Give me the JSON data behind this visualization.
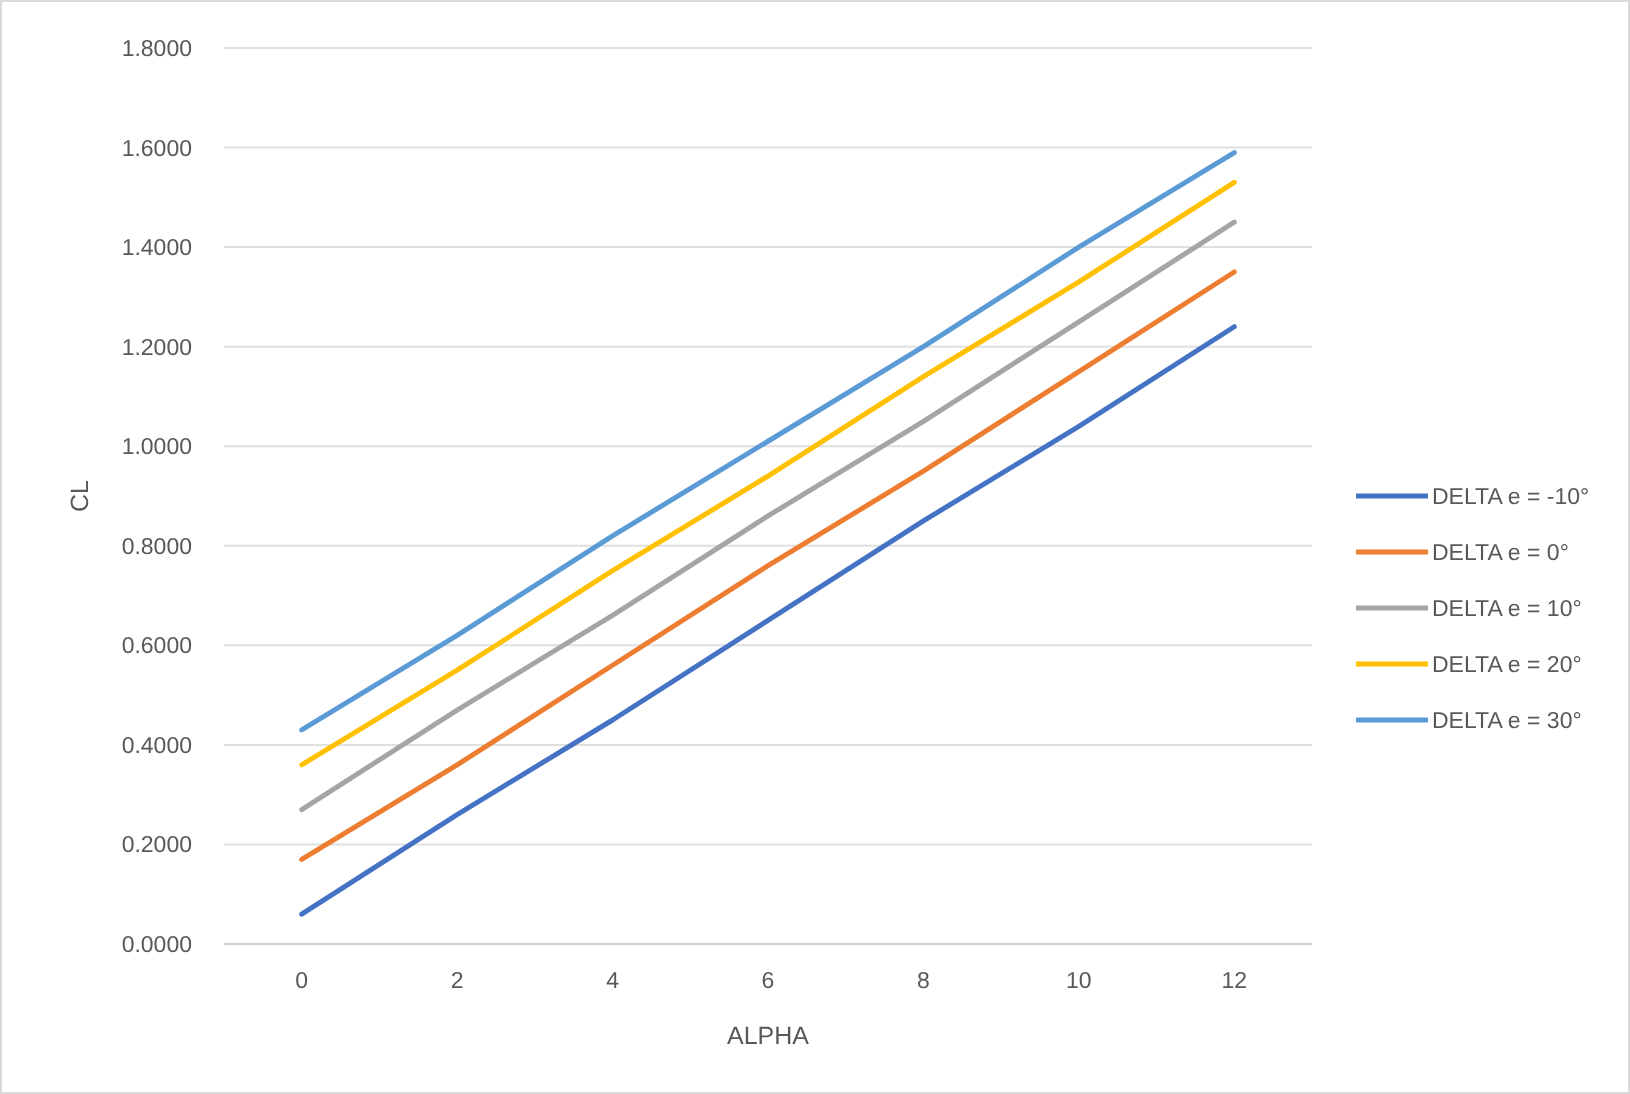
{
  "chart_data": {
    "type": "line",
    "xlabel": "ALPHA",
    "ylabel": "CL",
    "x": [
      0,
      2,
      4,
      6,
      8,
      10,
      12
    ],
    "xlim": [
      -1,
      13
    ],
    "xticks": [
      0,
      2,
      4,
      6,
      8,
      10,
      12
    ],
    "ylim": [
      0,
      1.8
    ],
    "yticks": [
      {
        "value": 0,
        "label": "0.0000"
      },
      {
        "value": 0.2,
        "label": "0.2000"
      },
      {
        "value": 0.4,
        "label": "0.4000"
      },
      {
        "value": 0.6,
        "label": "0.6000"
      },
      {
        "value": 0.8,
        "label": "0.8000"
      },
      {
        "value": 1.0,
        "label": "1.0000"
      },
      {
        "value": 1.2,
        "label": "1.2000"
      },
      {
        "value": 1.4,
        "label": "1.4000"
      },
      {
        "value": 1.6,
        "label": "1.6000"
      },
      {
        "value": 1.8,
        "label": "1.8000"
      }
    ],
    "grid": "y",
    "legend": "right",
    "marker": "none",
    "line_style": "solid",
    "series": [
      {
        "name": "DELTA e = -10°",
        "color": "#4472c4",
        "values": [
          0.06,
          0.26,
          0.45,
          0.65,
          0.85,
          1.04,
          1.24
        ]
      },
      {
        "name": "DELTA e = 0°",
        "color": "#ed7d31",
        "values": [
          0.17,
          0.36,
          0.56,
          0.76,
          0.95,
          1.15,
          1.35
        ]
      },
      {
        "name": "DELTA e = 10°",
        "color": "#a5a5a5",
        "values": [
          0.27,
          0.47,
          0.66,
          0.86,
          1.05,
          1.25,
          1.45
        ]
      },
      {
        "name": "DELTA e = 20°",
        "color": "#ffc000",
        "values": [
          0.36,
          0.55,
          0.75,
          0.94,
          1.14,
          1.33,
          1.53
        ]
      },
      {
        "name": "DELTA e = 30°",
        "color": "#5b9bd5",
        "values": [
          0.43,
          0.62,
          0.82,
          1.01,
          1.2,
          1.4,
          1.59
        ]
      }
    ]
  }
}
